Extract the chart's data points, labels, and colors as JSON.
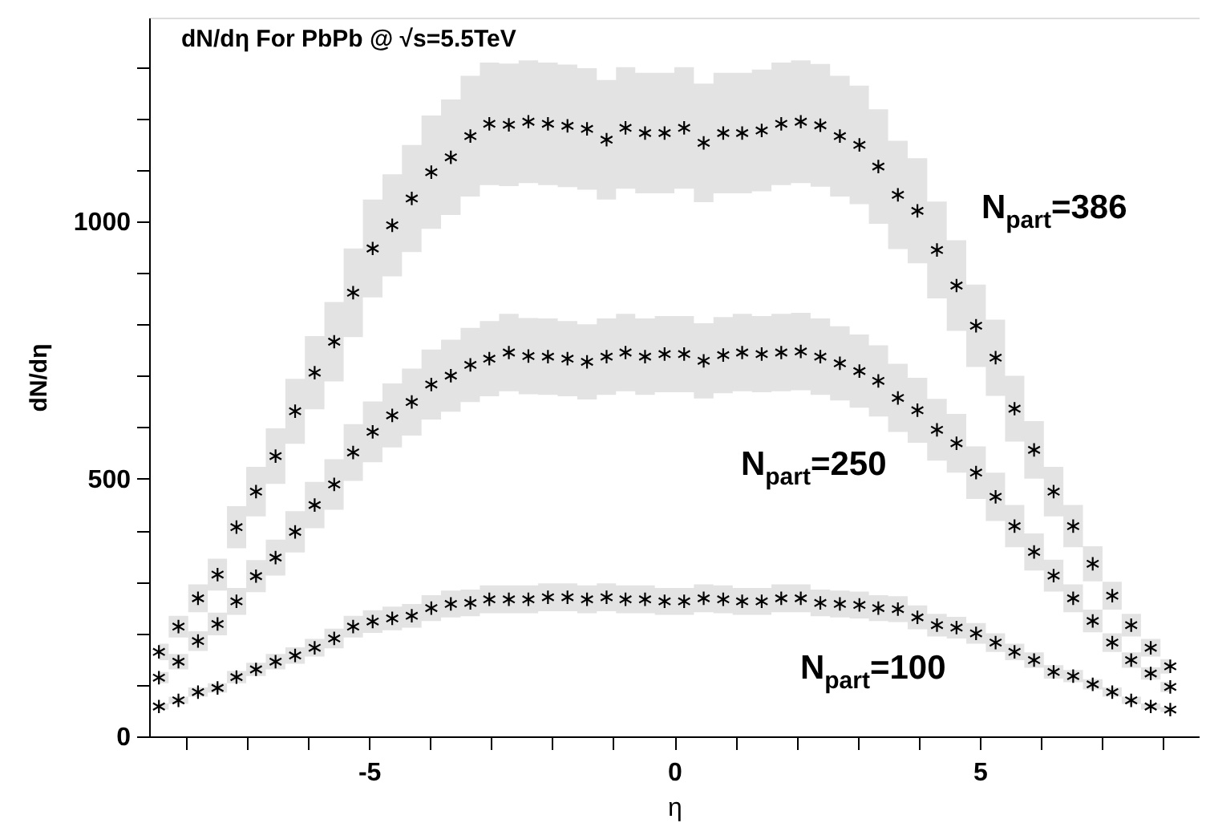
{
  "chart_data": {
    "type": "scatter",
    "title": "dN/dη For PbPb @ √s=5.5TeV",
    "xlabel": "η",
    "ylabel": "dN/dη",
    "x": [
      -8.44,
      -8.12,
      -7.8,
      -7.48,
      -7.17,
      -6.85,
      -6.53,
      -6.21,
      -5.89,
      -5.57,
      -5.26,
      -4.94,
      -4.62,
      -4.3,
      -3.98,
      -3.66,
      -3.34,
      -3.03,
      -2.71,
      -2.39,
      -2.07,
      -1.75,
      -1.43,
      -1.11,
      -0.8,
      -0.48,
      -0.16,
      0.16,
      0.48,
      0.8,
      1.11,
      1.43,
      1.75,
      2.07,
      2.39,
      2.71,
      3.03,
      3.34,
      3.66,
      3.98,
      4.3,
      4.62,
      4.94,
      5.26,
      5.57,
      5.89,
      6.21,
      6.53,
      6.85,
      7.17,
      7.48,
      7.8,
      8.12
    ],
    "series": [
      {
        "name": "N$_{part}$=386",
        "color": "#000000",
        "values": [
          164,
          213,
          268,
          314,
          406,
          475,
          544,
          631,
          706,
          766,
          861,
          947,
          992,
          1044,
          1095,
          1124,
          1165,
          1189,
          1187,
          1193,
          1189,
          1185,
          1179,
          1158,
          1181,
          1171,
          1171,
          1181,
          1152,
          1171,
          1171,
          1176,
          1189,
          1193,
          1186,
          1165,
          1148,
          1106,
          1051,
          1020,
          944,
          875,
          797,
          735,
          636,
          556,
          475,
          408,
          335,
          273,
          216,
          172,
          136
        ],
        "lower": [
          148,
          192,
          241,
          283,
          365,
          427,
          490,
          568,
          635,
          689,
          775,
          852,
          893,
          940,
          985,
          1012,
          1048,
          1070,
          1068,
          1074,
          1070,
          1066,
          1061,
          1042,
          1063,
          1054,
          1054,
          1063,
          1037,
          1054,
          1054,
          1058,
          1070,
          1074,
          1067,
          1048,
          1033,
          995,
          946,
          918,
          850,
          787,
          717,
          661,
          572,
          500,
          427,
          367,
          301,
          246,
          194,
          155,
          122
        ],
        "upper": [
          180,
          234,
          295,
          345,
          447,
          523,
          598,
          694,
          777,
          843,
          947,
          1042,
          1091,
          1148,
          1205,
          1236,
          1282,
          1308,
          1306,
          1312,
          1308,
          1304,
          1297,
          1274,
          1299,
          1288,
          1288,
          1299,
          1267,
          1288,
          1288,
          1294,
          1308,
          1312,
          1305,
          1282,
          1263,
          1217,
          1156,
          1122,
          1038,
          963,
          877,
          809,
          700,
          612,
          523,
          449,
          369,
          300,
          238,
          189,
          150
        ]
      },
      {
        "name": "N$_{part}$=250",
        "color": "#000000",
        "values": [
          114,
          145,
          185,
          218,
          262,
          311,
          347,
          397,
          449,
          489,
          551,
          591,
          623,
          649,
          683,
          700,
          721,
          733,
          745,
          738,
          737,
          733,
          727,
          737,
          745,
          737,
          742,
          742,
          729,
          740,
          745,
          742,
          745,
          747,
          737,
          724,
          709,
          690,
          657,
          633,
          595,
          569,
          512,
          465,
          408,
          358,
          312,
          268,
          224,
          182,
          148,
          122,
          96
        ],
        "lower": [
          103,
          130,
          166,
          196,
          236,
          280,
          312,
          357,
          404,
          440,
          496,
          532,
          561,
          584,
          615,
          630,
          649,
          660,
          670,
          664,
          663,
          660,
          654,
          663,
          670,
          663,
          668,
          668,
          656,
          666,
          670,
          668,
          670,
          672,
          663,
          652,
          638,
          621,
          591,
          570,
          535,
          512,
          461,
          418,
          367,
          322,
          281,
          241,
          202,
          164,
          133,
          110,
          86
        ],
        "upper": [
          125,
          160,
          204,
          240,
          288,
          342,
          382,
          437,
          494,
          538,
          606,
          650,
          685,
          714,
          751,
          770,
          793,
          806,
          820,
          812,
          811,
          806,
          800,
          811,
          820,
          811,
          816,
          816,
          802,
          814,
          820,
          816,
          820,
          822,
          811,
          796,
          780,
          759,
          723,
          696,
          655,
          626,
          563,
          512,
          449,
          394,
          343,
          295,
          246,
          200,
          163,
          134,
          106
        ]
      },
      {
        "name": "N$_{part}$=100",
        "color": "#000000",
        "values": [
          58,
          70,
          86,
          94,
          115,
          130,
          145,
          157,
          172,
          190,
          213,
          223,
          229,
          234,
          249,
          257,
          259,
          266,
          266,
          266,
          270,
          270,
          266,
          270,
          266,
          266,
          262,
          262,
          268,
          266,
          262,
          262,
          268,
          268,
          259,
          257,
          255,
          249,
          247,
          231,
          216,
          211,
          200,
          182,
          164,
          148,
          125,
          117,
          101,
          86,
          70,
          58,
          52
        ],
        "lower": [
          52,
          63,
          77,
          85,
          103,
          117,
          130,
          141,
          155,
          171,
          192,
          201,
          206,
          211,
          224,
          231,
          233,
          239,
          239,
          239,
          243,
          243,
          239,
          243,
          239,
          239,
          236,
          236,
          241,
          239,
          236,
          236,
          241,
          241,
          233,
          231,
          229,
          224,
          222,
          208,
          194,
          190,
          180,
          164,
          148,
          133,
          112,
          105,
          91,
          77,
          63,
          52,
          47
        ],
        "upper": [
          64,
          77,
          95,
          103,
          127,
          143,
          160,
          173,
          189,
          209,
          234,
          245,
          252,
          257,
          274,
          283,
          285,
          293,
          293,
          293,
          297,
          297,
          293,
          297,
          293,
          293,
          288,
          288,
          295,
          293,
          288,
          288,
          295,
          295,
          285,
          283,
          281,
          274,
          272,
          254,
          238,
          232,
          220,
          200,
          180,
          163,
          138,
          129,
          111,
          95,
          77,
          64,
          57
        ]
      }
    ],
    "xlim": [
      -8.6,
      8.6
    ],
    "xticks": [
      {
        "value": -8,
        "label": null
      },
      {
        "value": -7,
        "label": null
      },
      {
        "value": -6,
        "label": null
      },
      -5,
      {
        "value": -4,
        "label": null
      },
      {
        "value": -3,
        "label": null
      },
      {
        "value": -2,
        "label": null
      },
      {
        "value": -1,
        "label": null
      },
      0,
      {
        "value": 1,
        "label": null
      },
      {
        "value": 2,
        "label": null
      },
      {
        "value": 3,
        "label": null
      },
      {
        "value": 4,
        "label": null
      },
      5,
      {
        "value": 6,
        "label": null
      },
      {
        "value": 7,
        "label": null
      },
      {
        "value": 8,
        "label": null
      }
    ],
    "ylim": [
      0,
      1395
    ],
    "yticks": [
      0,
      {
        "value": 100,
        "label": null
      },
      {
        "value": 200,
        "label": null
      },
      {
        "value": 300,
        "label": null
      },
      {
        "value": 400,
        "label": null
      },
      500,
      {
        "value": 600,
        "label": null
      },
      {
        "value": 700,
        "label": null
      },
      {
        "value": 800,
        "label": null
      },
      {
        "value": 900,
        "label": null
      },
      1000,
      {
        "value": 1100,
        "label": null
      },
      {
        "value": 1200,
        "label": null
      },
      {
        "value": 1300,
        "label": null
      }
    ],
    "marker": "cross",
    "grid": false
  }
}
